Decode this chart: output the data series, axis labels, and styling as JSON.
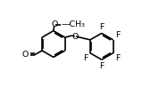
{
  "bg_color": "#ffffff",
  "bond_color": "#000000",
  "text_color": "#000000",
  "bond_width": 1.2,
  "dbo": 0.013,
  "font_size": 6.8,
  "fig_width": 1.78,
  "fig_height": 0.99,
  "dpi": 100,
  "xlim": [
    0.0,
    1.0
  ],
  "ylim": [
    0.05,
    0.95
  ]
}
